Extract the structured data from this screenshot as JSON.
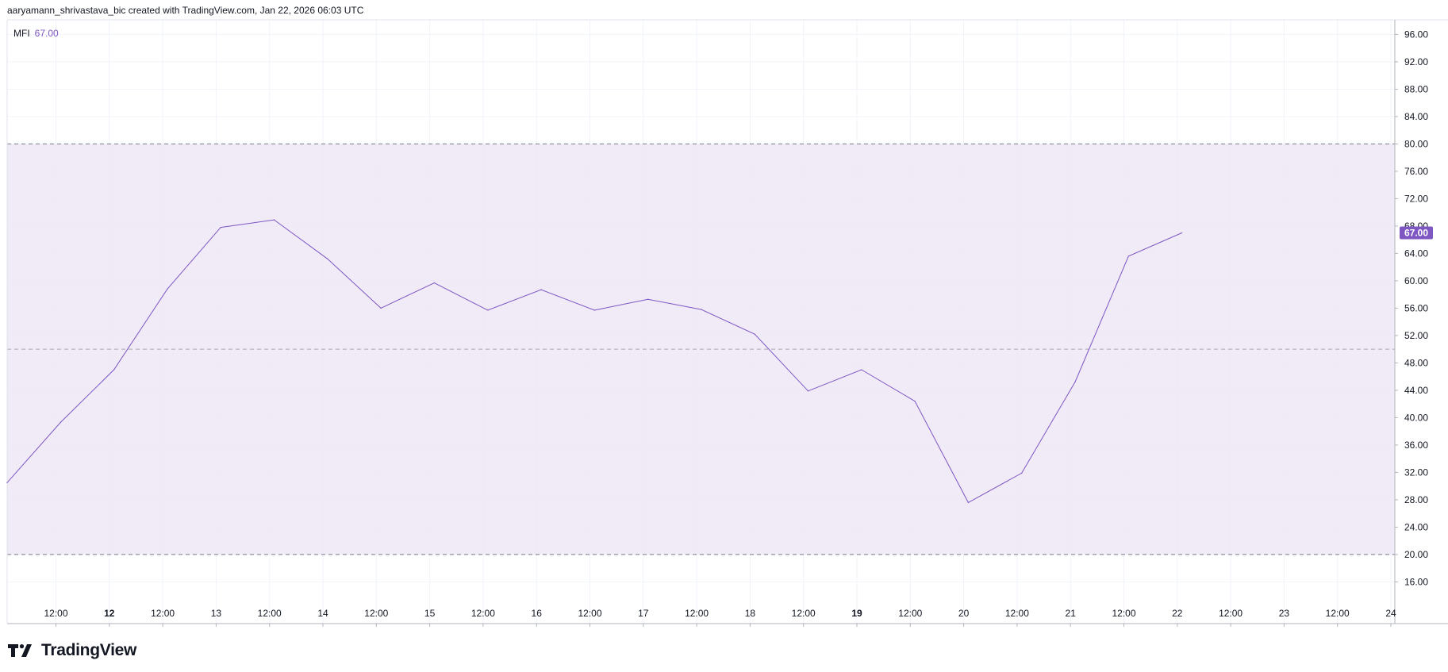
{
  "header": {
    "attribution": "aaryamann_shrivastava_bic created with TradingView.com, Jan 22, 2026 06:03 UTC"
  },
  "legend": {
    "name": "MFI",
    "value": "67.00"
  },
  "price_tag": "67.00",
  "brand": {
    "name": "TradingView"
  },
  "colors": {
    "line": "#7e57c2",
    "band_fill": "#ede7f6",
    "price_tag_bg": "#7e57c2",
    "grid": "#f0f3fa",
    "dashed": "#787b86"
  },
  "chart_data": {
    "type": "line",
    "title": "",
    "xlabel": "",
    "ylabel": "",
    "ylim": [
      13,
      98
    ],
    "y_ticks": [
      "96.00",
      "92.00",
      "88.00",
      "84.00",
      "80.00",
      "76.00",
      "72.00",
      "68.00",
      "64.00",
      "60.00",
      "56.00",
      "52.00",
      "48.00",
      "44.00",
      "40.00",
      "36.00",
      "32.00",
      "28.00",
      "24.00",
      "20.00",
      "16.00"
    ],
    "x_ticks": [
      {
        "label": "12:00",
        "bold": false
      },
      {
        "label": "12",
        "bold": true
      },
      {
        "label": "12:00",
        "bold": false
      },
      {
        "label": "13",
        "bold": false
      },
      {
        "label": "12:00",
        "bold": false
      },
      {
        "label": "14",
        "bold": false
      },
      {
        "label": "12:00",
        "bold": false
      },
      {
        "label": "15",
        "bold": false
      },
      {
        "label": "12:00",
        "bold": false
      },
      {
        "label": "16",
        "bold": false
      },
      {
        "label": "12:00",
        "bold": false
      },
      {
        "label": "17",
        "bold": false
      },
      {
        "label": "12:00",
        "bold": false
      },
      {
        "label": "18",
        "bold": false
      },
      {
        "label": "12:00",
        "bold": false
      },
      {
        "label": "19",
        "bold": true
      },
      {
        "label": "12:00",
        "bold": false
      },
      {
        "label": "20",
        "bold": false
      },
      {
        "label": "12:00",
        "bold": false
      },
      {
        "label": "21",
        "bold": false
      },
      {
        "label": "12:00",
        "bold": false
      },
      {
        "label": "22",
        "bold": false
      },
      {
        "label": "12:00",
        "bold": false
      },
      {
        "label": "23",
        "bold": false
      },
      {
        "label": "12:00",
        "bold": false
      },
      {
        "label": "24",
        "bold": false
      }
    ],
    "bands": {
      "upper": 80,
      "middle": 50,
      "lower": 20
    },
    "series": [
      {
        "name": "MFI",
        "values": [
          30.5,
          39.3,
          47.0,
          58.8,
          67.8,
          68.9,
          63.2,
          56.0,
          59.7,
          55.7,
          58.7,
          55.7,
          57.3,
          55.8,
          52.2,
          43.9,
          47.0,
          42.4,
          27.6,
          31.9,
          45.2,
          63.6,
          67.0
        ]
      }
    ]
  }
}
